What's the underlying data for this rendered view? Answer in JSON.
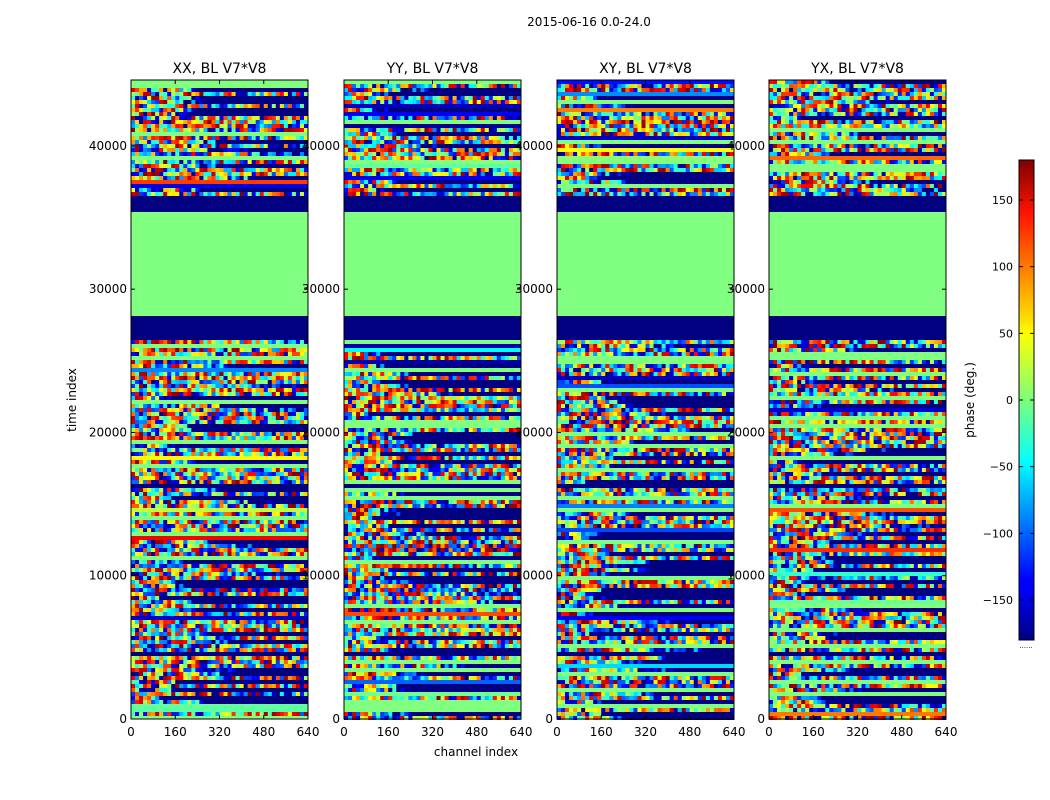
{
  "chart_data": {
    "type": "heatmap",
    "title": "2015-06-16 0.0-24.0",
    "colormap": "jet",
    "panels": [
      {
        "title": "XX, BL V7*V8"
      },
      {
        "title": "YY, BL V7*V8"
      },
      {
        "title": "XY, BL V7*V8"
      },
      {
        "title": "YX, BL V7*V8"
      }
    ],
    "xlabel": "channel index",
    "ylabel": "time index",
    "xlim": [
      0,
      640
    ],
    "ylim": [
      0,
      44600
    ],
    "xticks": [
      0,
      160,
      320,
      480,
      640
    ],
    "yticks": [
      0,
      10000,
      20000,
      30000,
      40000
    ],
    "colorbar": {
      "label": "phase (deg.)",
      "range": [
        -180,
        180
      ],
      "ticks": [
        150,
        100,
        50,
        0,
        -50,
        -100,
        -150
      ],
      "tick_labels": [
        "150",
        "100",
        "50",
        "0",
        "−50",
        "−100",
        "−150"
      ],
      "footer": "......"
    },
    "flagged_value_deg": -180,
    "time_bands": [
      {
        "t0": 26400,
        "t1": 28100,
        "kind": "flagged"
      },
      {
        "t0": 28100,
        "t1": 28800,
        "kind": "zero"
      },
      {
        "t0": 28800,
        "t1": 35500,
        "kind": "zero"
      },
      {
        "t0": 35500,
        "t1": 36500,
        "kind": "flagged"
      },
      {
        "t0": 16000,
        "t1": 16500,
        "kind": "flagged"
      },
      {
        "t0": 4300,
        "t1": 4700,
        "kind": "flagged"
      }
    ],
    "zero_phase_value_deg": 0
  }
}
